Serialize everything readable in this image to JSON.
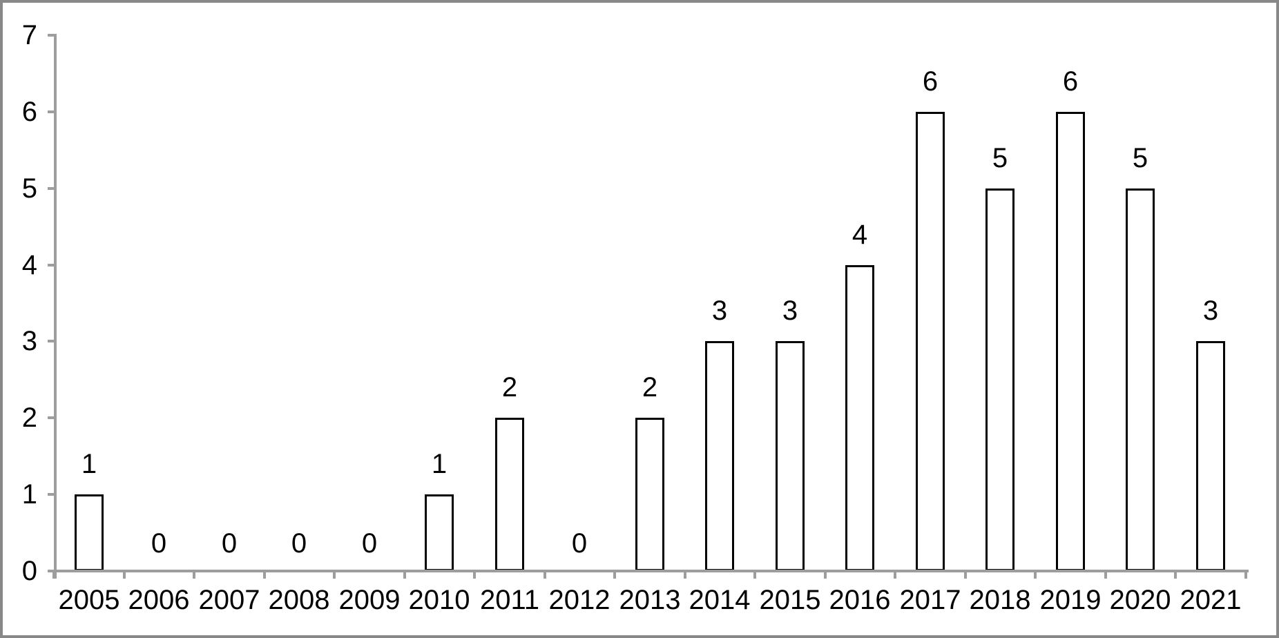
{
  "figure": {
    "kind": "standalone bar chart figure",
    "background": "#ffffff"
  },
  "chart_data": {
    "type": "bar",
    "title": "",
    "xlabel": "",
    "ylabel": "",
    "categories": [
      "2005",
      "2006",
      "2007",
      "2008",
      "2009",
      "2010",
      "2011",
      "2012",
      "2013",
      "2014",
      "2015",
      "2016",
      "2017",
      "2018",
      "2019",
      "2020",
      "2021"
    ],
    "values": [
      1,
      0,
      0,
      0,
      0,
      1,
      2,
      0,
      2,
      3,
      3,
      4,
      6,
      5,
      6,
      5,
      3
    ],
    "data_labels": [
      "1",
      "0",
      "0",
      "0",
      "0",
      "1",
      "2",
      "0",
      "2",
      "3",
      "3",
      "4",
      "6",
      "5",
      "6",
      "5",
      "3"
    ],
    "ylim": [
      0,
      7
    ],
    "yticks": [
      0,
      1,
      2,
      3,
      4,
      5,
      6,
      7
    ],
    "y_tick_labels": [
      "0",
      "1",
      "2",
      "3",
      "4",
      "5",
      "6",
      "7"
    ],
    "grid": "off",
    "legend": "none",
    "colors": {
      "bar_fill": "#ffffff",
      "bar_outline": "#000000",
      "axis_line": "#9d9d9d",
      "frame_border": "#888888",
      "label_text": "#000000",
      "background": "#ffffff"
    }
  }
}
